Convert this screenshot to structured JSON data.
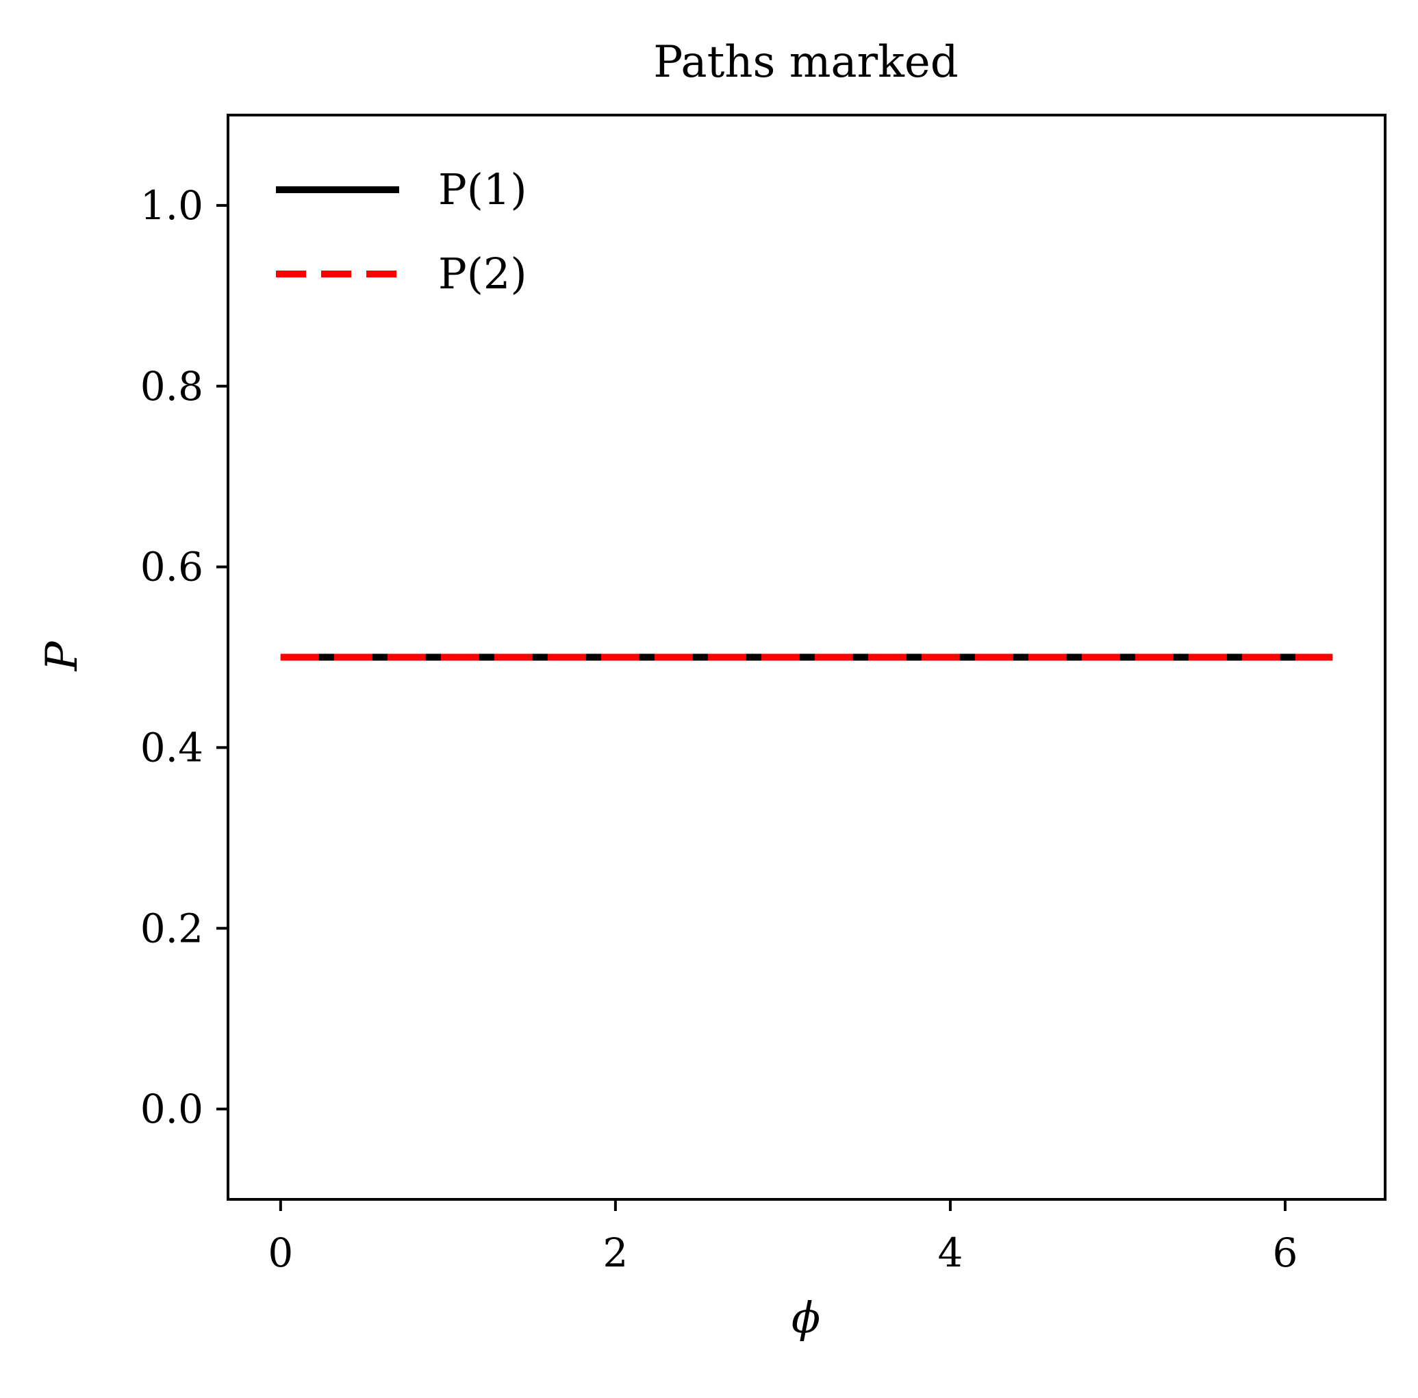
{
  "chart_data": {
    "type": "line",
    "title": "Paths marked",
    "xlabel": "ϕ",
    "ylabel": "P",
    "xlim": [
      -0.3142,
      6.5973
    ],
    "ylim": [
      -0.1,
      1.1
    ],
    "xticks": [
      0,
      2,
      4,
      6
    ],
    "xtick_labels": [
      "0",
      "2",
      "4",
      "6"
    ],
    "yticks": [
      0.0,
      0.2,
      0.4,
      0.6,
      0.8,
      1.0
    ],
    "ytick_labels": [
      "0.0",
      "0.2",
      "0.4",
      "0.6",
      "0.8",
      "1.0"
    ],
    "grid": false,
    "legend_position": "upper-left",
    "series": [
      {
        "name": "P(1)",
        "style": "solid",
        "color": "#000000",
        "x": [
          0,
          6.2832
        ],
        "y": [
          0.5,
          0.5
        ]
      },
      {
        "name": "P(2)",
        "style": "dashed",
        "color": "#ff0000",
        "x": [
          0,
          6.2832
        ],
        "y": [
          0.5,
          0.5
        ]
      }
    ]
  }
}
